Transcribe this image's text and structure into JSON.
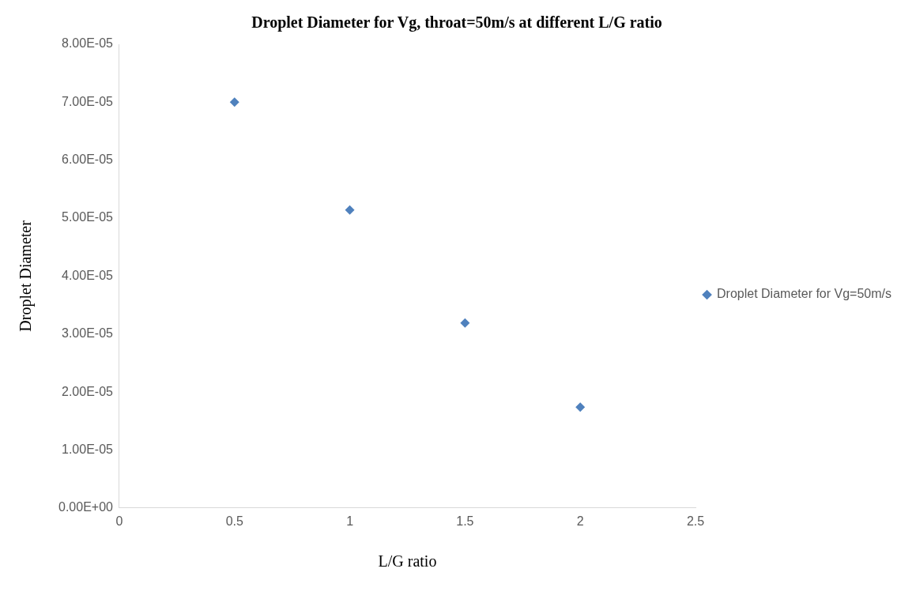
{
  "chart_data": {
    "type": "scatter",
    "title": "Droplet Diameter for Vg, throat=50m/s at different L/G ratio",
    "xlabel": "L/G ratio",
    "ylabel": "Droplet Diameter",
    "x": [
      0.5,
      1,
      1.5,
      2
    ],
    "series": [
      {
        "name": "Droplet Diameter for Vg=50m/s",
        "color": "#4f81bd",
        "values": [
          7e-05,
          5.14e-05,
          3.19e-05,
          1.74e-05
        ]
      }
    ],
    "xlim": [
      0,
      2.5
    ],
    "xticks": [
      0,
      0.5,
      1,
      1.5,
      2,
      2.5
    ],
    "ylim": [
      0,
      8e-05
    ],
    "yticks": [
      {
        "value": 0,
        "label": "0.00E+00"
      },
      {
        "value": 1e-05,
        "label": "1.00E-05"
      },
      {
        "value": 2e-05,
        "label": "2.00E-05"
      },
      {
        "value": 3e-05,
        "label": "3.00E-05"
      },
      {
        "value": 4e-05,
        "label": "4.00E-05"
      },
      {
        "value": 5e-05,
        "label": "5.00E-05"
      },
      {
        "value": 6e-05,
        "label": "6.00E-05"
      },
      {
        "value": 7e-05,
        "label": "7.00E-05"
      },
      {
        "value": 8e-05,
        "label": "8.00E-05"
      }
    ],
    "grid": false,
    "legend": "right",
    "marker": "diamond"
  }
}
